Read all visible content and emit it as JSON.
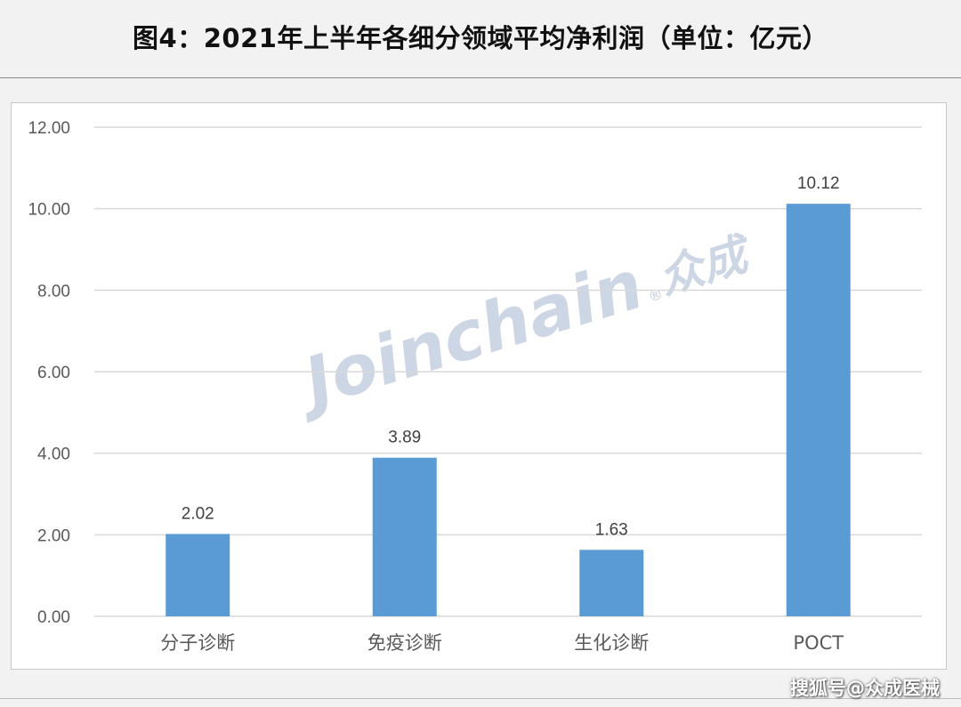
{
  "header": {
    "title": "图4：2021年上半年各细分领域平均净利润（单位：亿元）"
  },
  "watermark": {
    "text": "Joinchain",
    "mark": "®",
    "cn_text": "众成",
    "color": "#8ea3c3"
  },
  "credit": {
    "text": "搜狐号@众成医械"
  },
  "colors": {
    "bar": "#5b9bd5",
    "grid": "#d9d9d9",
    "axis_text": "#595959"
  },
  "chart_data": {
    "type": "bar",
    "title": "",
    "xlabel": "",
    "ylabel": "",
    "categories": [
      "分子诊断",
      "免疫诊断",
      "生化诊断",
      "POCT"
    ],
    "values": [
      2.02,
      3.89,
      1.63,
      10.12
    ],
    "value_labels": [
      "2.02",
      "3.89",
      "1.63",
      "10.12"
    ],
    "ylim": [
      0,
      12
    ],
    "yticks": [
      0,
      2,
      4,
      6,
      8,
      10,
      12
    ],
    "ytick_labels": [
      "0.00",
      "2.00",
      "4.00",
      "6.00",
      "8.00",
      "10.00",
      "12.00"
    ],
    "grid": true,
    "legend": "none"
  }
}
